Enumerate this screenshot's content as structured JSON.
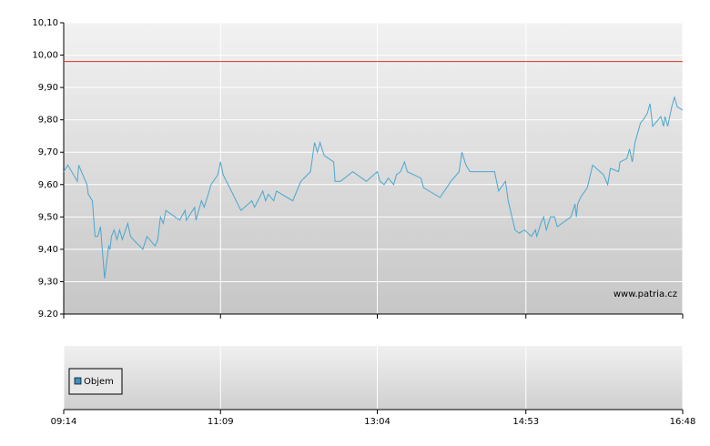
{
  "chart_data": [
    {
      "type": "line",
      "x": [
        "09:14",
        "09:17",
        "09:24",
        "09:25",
        "09:31",
        "09:32",
        "09:35",
        "09:37",
        "09:39",
        "09:41",
        "09:44",
        "09:47",
        "09:48",
        "09:49",
        "09:51",
        "09:53",
        "09:55",
        "09:57",
        "10:01",
        "10:03",
        "10:05",
        "10:12",
        "10:15",
        "10:21",
        "10:23",
        "10:25",
        "10:27",
        "10:29",
        "10:39",
        "10:43",
        "10:44",
        "10:50",
        "10:51",
        "10:55",
        "10:57",
        "11:00",
        "11:02",
        "11:07",
        "11:09",
        "11:11",
        "11:17",
        "11:24",
        "11:32",
        "11:34",
        "11:40",
        "11:42",
        "11:44",
        "11:48",
        "11:50",
        "12:02",
        "12:08",
        "12:15",
        "12:18",
        "12:20",
        "12:22",
        "12:25",
        "12:32",
        "12:33",
        "12:37",
        "12:46",
        "12:56",
        "13:04",
        "13:06",
        "13:09",
        "13:12",
        "13:16",
        "13:18",
        "13:21",
        "13:24",
        "13:26",
        "13:36",
        "13:38",
        "13:50",
        "13:58",
        "14:04",
        "14:06",
        "14:09",
        "14:12",
        "14:30",
        "14:33",
        "14:38",
        "14:40",
        "14:45",
        "14:48",
        "14:52",
        "14:57",
        "15:00",
        "15:01",
        "15:04",
        "15:06",
        "15:08",
        "15:11",
        "15:14",
        "15:16",
        "15:26",
        "15:29",
        "15:30",
        "15:31",
        "15:33",
        "15:38",
        "15:42",
        "15:50",
        "15:53",
        "15:55",
        "16:01",
        "16:02",
        "16:07",
        "16:09",
        "16:11",
        "16:13",
        "16:17",
        "16:19",
        "16:22",
        "16:24",
        "16:26",
        "16:32",
        "16:34",
        "16:35",
        "16:37",
        "16:40",
        "16:42",
        "16:44",
        "16:48"
      ],
      "series": [
        {
          "color": "#4ba6cf",
          "values": [
            9.64,
            9.66,
            9.61,
            9.66,
            9.6,
            9.57,
            9.55,
            9.44,
            9.44,
            9.47,
            9.31,
            9.41,
            9.4,
            9.44,
            9.46,
            9.43,
            9.46,
            9.43,
            9.48,
            9.44,
            9.43,
            9.4,
            9.44,
            9.41,
            9.43,
            9.5,
            9.48,
            9.52,
            9.49,
            9.52,
            9.49,
            9.53,
            9.49,
            9.55,
            9.53,
            9.57,
            9.6,
            9.63,
            9.67,
            9.63,
            9.58,
            9.52,
            9.55,
            9.53,
            9.58,
            9.55,
            9.57,
            9.55,
            9.58,
            9.55,
            9.61,
            9.64,
            9.73,
            9.7,
            9.73,
            9.69,
            9.67,
            9.61,
            9.61,
            9.64,
            9.61,
            9.64,
            9.61,
            9.6,
            9.62,
            9.6,
            9.63,
            9.64,
            9.67,
            9.64,
            9.62,
            9.59,
            9.56,
            9.61,
            9.64,
            9.7,
            9.66,
            9.64,
            9.64,
            9.58,
            9.61,
            9.55,
            9.46,
            9.45,
            9.46,
            9.44,
            9.46,
            9.44,
            9.48,
            9.5,
            9.46,
            9.5,
            9.5,
            9.47,
            9.5,
            9.54,
            9.5,
            9.54,
            9.56,
            9.59,
            9.66,
            9.63,
            9.6,
            9.65,
            9.64,
            9.67,
            9.68,
            9.71,
            9.67,
            9.73,
            9.79,
            9.8,
            9.82,
            9.85,
            9.78,
            9.81,
            9.78,
            9.81,
            9.78,
            9.84,
            9.87,
            9.84,
            9.83
          ]
        }
      ],
      "reference_line": {
        "value": 9.98,
        "color": "#d9352b"
      },
      "xlim": [
        "09:14",
        "16:48"
      ],
      "xticks": [
        "09:14",
        "11:09",
        "13:04",
        "14:53",
        "16:48"
      ],
      "ylim": [
        9.2,
        10.1
      ],
      "yticks": [
        {
          "value": 9.2,
          "label": "9.20"
        },
        {
          "value": 9.3,
          "label": "9,30"
        },
        {
          "value": 9.4,
          "label": "9,40"
        },
        {
          "value": 9.5,
          "label": "9,50"
        },
        {
          "value": 9.6,
          "label": "9,60"
        },
        {
          "value": 9.7,
          "label": "9,70"
        },
        {
          "value": 9.8,
          "label": "9,80"
        },
        {
          "value": 9.9,
          "label": "9,90"
        },
        {
          "value": 10.0,
          "label": "10,00"
        },
        {
          "value": 10.1,
          "label": "10,10"
        }
      ],
      "grid": true,
      "watermark": "www.patria.cz"
    },
    {
      "type": "bar",
      "series": [
        {
          "name": "Objem",
          "color": "#3d8fc4"
        }
      ],
      "legend": "lower left"
    }
  ]
}
